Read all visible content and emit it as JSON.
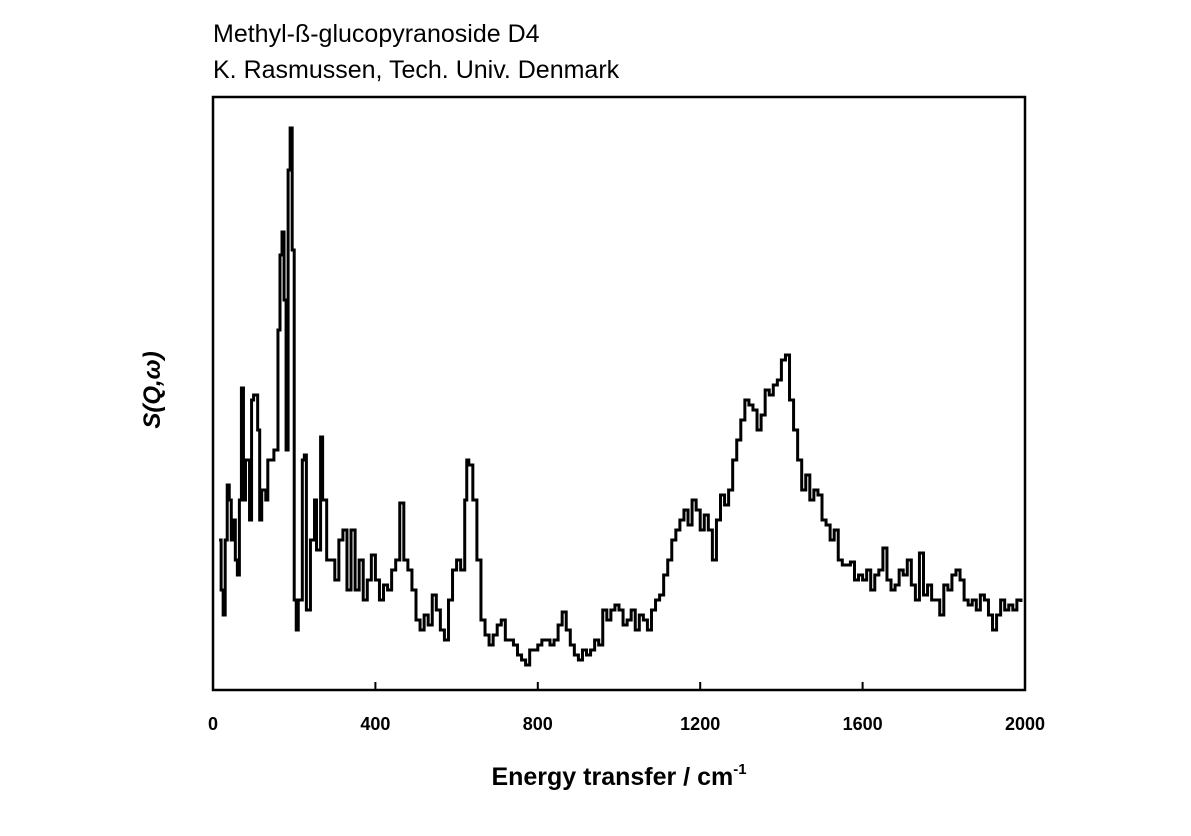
{
  "chart_data": {
    "type": "step",
    "title": "Methyl-ß-glucopyranoside D4",
    "subtitle": "K. Rasmussen, Tech. Univ. Denmark",
    "x_label": "Energy transfer / cm",
    "x_label_superscript": "-1",
    "y_label": "S(Q,ω)",
    "color": "#000000",
    "xlim": [
      0,
      2000
    ],
    "xticks": [
      0,
      400,
      800,
      1200,
      1600,
      2000
    ],
    "ylim": [
      0,
      593
    ],
    "x": [
      15,
      20,
      25,
      30,
      35,
      40,
      45,
      50,
      55,
      60,
      65,
      70,
      75,
      80,
      90,
      95,
      100,
      110,
      115,
      120,
      130,
      135,
      150,
      160,
      165,
      170,
      175,
      180,
      185,
      190,
      195,
      200,
      205,
      210,
      220,
      225,
      230,
      240,
      250,
      255,
      265,
      270,
      280,
      300,
      310,
      320,
      330,
      340,
      350,
      360,
      370,
      380,
      390,
      400,
      410,
      420,
      430,
      440,
      450,
      460,
      470,
      480,
      490,
      500,
      510,
      520,
      530,
      540,
      550,
      560,
      570,
      580,
      590,
      600,
      610,
      620,
      625,
      630,
      640,
      650,
      660,
      670,
      680,
      690,
      700,
      710,
      720,
      730,
      740,
      750,
      760,
      770,
      780,
      790,
      800,
      810,
      820,
      830,
      840,
      850,
      860,
      870,
      880,
      890,
      900,
      910,
      920,
      930,
      940,
      950,
      960,
      970,
      980,
      990,
      1000,
      1010,
      1020,
      1030,
      1040,
      1050,
      1060,
      1070,
      1080,
      1090,
      1100,
      1110,
      1120,
      1130,
      1140,
      1150,
      1160,
      1170,
      1180,
      1190,
      1200,
      1210,
      1220,
      1230,
      1240,
      1250,
      1260,
      1270,
      1280,
      1290,
      1300,
      1310,
      1320,
      1330,
      1340,
      1350,
      1360,
      1370,
      1380,
      1390,
      1400,
      1410,
      1420,
      1430,
      1440,
      1450,
      1460,
      1470,
      1480,
      1490,
      1500,
      1510,
      1520,
      1530,
      1540,
      1550,
      1560,
      1570,
      1580,
      1590,
      1600,
      1610,
      1620,
      1630,
      1640,
      1650,
      1660,
      1670,
      1680,
      1690,
      1700,
      1710,
      1720,
      1730,
      1740,
      1750,
      1760,
      1770,
      1780,
      1790,
      1800,
      1810,
      1820,
      1830,
      1840,
      1850,
      1860,
      1870,
      1880,
      1890,
      1900,
      1910,
      1920,
      1930,
      1940,
      1950,
      1960,
      1970,
      1980,
      1990
    ],
    "values": [
      150,
      100,
      75,
      150,
      205,
      190,
      150,
      170,
      130,
      115,
      190,
      302,
      190,
      230,
      170,
      290,
      295,
      260,
      170,
      200,
      190,
      230,
      240,
      360,
      435,
      458,
      390,
      240,
      520,
      562,
      440,
      90,
      60,
      90,
      230,
      235,
      80,
      150,
      190,
      140,
      253,
      190,
      130,
      110,
      150,
      160,
      100,
      160,
      100,
      130,
      90,
      110,
      135,
      110,
      90,
      105,
      100,
      120,
      130,
      187,
      130,
      120,
      100,
      70,
      60,
      75,
      65,
      95,
      80,
      60,
      50,
      90,
      120,
      130,
      120,
      190,
      230,
      225,
      190,
      130,
      70,
      55,
      45,
      55,
      65,
      70,
      50,
      50,
      45,
      35,
      30,
      25,
      40,
      40,
      45,
      50,
      50,
      45,
      50,
      65,
      78,
      60,
      45,
      35,
      30,
      40,
      35,
      40,
      50,
      45,
      80,
      70,
      80,
      85,
      80,
      65,
      70,
      80,
      60,
      75,
      70,
      60,
      80,
      90,
      95,
      115,
      130,
      150,
      160,
      170,
      180,
      165,
      190,
      180,
      160,
      175,
      160,
      130,
      170,
      195,
      185,
      200,
      230,
      250,
      270,
      290,
      285,
      280,
      260,
      275,
      300,
      295,
      305,
      310,
      330,
      335,
      290,
      260,
      230,
      200,
      215,
      190,
      200,
      195,
      170,
      165,
      150,
      160,
      130,
      125,
      125,
      128,
      110,
      115,
      110,
      120,
      100,
      115,
      120,
      142,
      110,
      100,
      105,
      120,
      115,
      130,
      105,
      90,
      137,
      95,
      105,
      90,
      90,
      75,
      105,
      100,
      115,
      120,
      110,
      90,
      85,
      90,
      80,
      95,
      90,
      75,
      60,
      75,
      90,
      80,
      85,
      80,
      90,
      88
    ]
  }
}
